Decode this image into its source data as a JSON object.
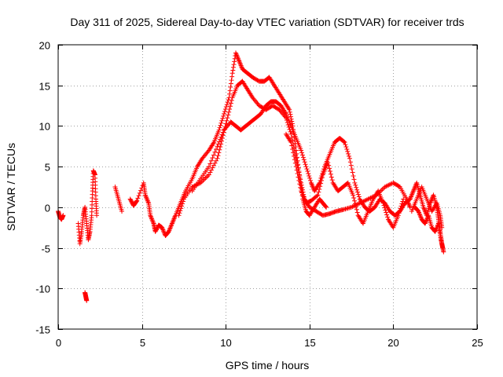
{
  "chart_data": {
    "type": "scatter",
    "title": "Day 311 of 2025, Sidereal Day-to-day VTEC variation (SDTVAR) for receiver trds",
    "xlabel": "GPS time / hours",
    "ylabel": "SDTVAR / TECUs",
    "xlim": [
      0,
      25
    ],
    "ylim": [
      -15,
      20
    ],
    "xticks": [
      0,
      5,
      10,
      15,
      20,
      25
    ],
    "yticks": [
      -15,
      -10,
      -5,
      0,
      5,
      10,
      15,
      20
    ],
    "xtick_labels": [
      "0",
      "5",
      "10",
      "15",
      "20",
      "25"
    ],
    "ytick_labels": [
      "-15",
      "-10",
      "-5",
      "0",
      "5",
      "10",
      "15",
      "20"
    ],
    "grid": true,
    "marker": "+",
    "series": [
      {
        "name": "trds",
        "color": "#ff0000",
        "tracks": [
          [
            [
              0.0,
              -0.5
            ],
            [
              0.1,
              -1.2
            ],
            [
              0.2,
              -1.5
            ],
            [
              0.3,
              -1.0
            ]
          ],
          [
            [
              1.2,
              -2.0
            ],
            [
              1.3,
              -4.5
            ],
            [
              1.4,
              -3.0
            ],
            [
              1.5,
              -1.0
            ],
            [
              1.6,
              0.0
            ],
            [
              1.7,
              -2.0
            ],
            [
              1.8,
              -4.0
            ],
            [
              1.9,
              -3.0
            ],
            [
              2.0,
              -1.0
            ],
            [
              2.05,
              2.0
            ],
            [
              2.1,
              4.5
            ],
            [
              2.2,
              4.0
            ],
            [
              2.25,
              1.0
            ],
            [
              2.3,
              -1.0
            ]
          ],
          [
            [
              1.6,
              -10.5
            ],
            [
              1.65,
              -11.0
            ],
            [
              1.7,
              -11.5
            ]
          ],
          [
            [
              3.4,
              2.5
            ],
            [
              3.6,
              1.0
            ],
            [
              3.8,
              -0.5
            ]
          ],
          [
            [
              4.3,
              1.0
            ],
            [
              4.5,
              0.2
            ],
            [
              4.7,
              0.8
            ],
            [
              5.1,
              3.0
            ],
            [
              5.2,
              1.5
            ],
            [
              5.4,
              0.5
            ],
            [
              5.5,
              -1.0
            ],
            [
              5.7,
              -2.0
            ],
            [
              5.8,
              -3.0
            ],
            [
              6.0,
              -2.2
            ],
            [
              6.2,
              -2.5
            ],
            [
              6.4,
              -3.5
            ],
            [
              6.6,
              -3.0
            ],
            [
              6.8,
              -2.0
            ],
            [
              7.0,
              -1.0
            ],
            [
              7.3,
              0.5
            ],
            [
              7.6,
              2.0
            ],
            [
              8.0,
              3.5
            ],
            [
              8.3,
              5.0
            ],
            [
              8.6,
              6.0
            ],
            [
              9.0,
              7.0
            ],
            [
              9.3,
              8.0
            ],
            [
              9.6,
              9.5
            ],
            [
              9.9,
              11.5
            ],
            [
              10.2,
              13.5
            ],
            [
              10.4,
              16.5
            ],
            [
              10.6,
              19.0
            ],
            [
              10.8,
              18.0
            ],
            [
              11.0,
              17.0
            ],
            [
              11.3,
              16.5
            ],
            [
              11.6,
              16.0
            ],
            [
              12.0,
              15.5
            ],
            [
              12.3,
              15.5
            ],
            [
              12.6,
              16.0
            ],
            [
              12.9,
              15.0
            ],
            [
              13.2,
              14.0
            ],
            [
              13.5,
              13.0
            ],
            [
              13.8,
              12.0
            ],
            [
              14.0,
              10.0
            ],
            [
              14.2,
              7.0
            ],
            [
              14.4,
              4.0
            ],
            [
              14.6,
              1.0
            ],
            [
              14.8,
              -0.5
            ],
            [
              15.0,
              -1.0
            ],
            [
              15.3,
              0.0
            ],
            [
              15.6,
              1.0
            ],
            [
              15.8,
              0.5
            ],
            [
              16.0,
              0.0
            ]
          ],
          [
            [
              7.2,
              -1.0
            ],
            [
              7.5,
              1.0
            ],
            [
              8.0,
              2.5
            ],
            [
              8.5,
              3.0
            ],
            [
              9.0,
              4.0
            ],
            [
              9.5,
              6.0
            ],
            [
              9.8,
              8.5
            ],
            [
              10.1,
              11.0
            ],
            [
              10.4,
              13.5
            ],
            [
              10.7,
              15.0
            ],
            [
              11.0,
              15.5
            ],
            [
              11.3,
              14.5
            ],
            [
              11.6,
              13.5
            ],
            [
              12.0,
              12.5
            ],
            [
              12.4,
              12.0
            ],
            [
              12.8,
              12.5
            ],
            [
              13.2,
              12.0
            ],
            [
              13.6,
              11.0
            ],
            [
              13.9,
              9.0
            ],
            [
              14.2,
              6.0
            ],
            [
              14.5,
              3.0
            ],
            [
              14.7,
              1.0
            ],
            [
              15.0,
              0.0
            ],
            [
              15.4,
              -0.5
            ],
            [
              15.8,
              -1.0
            ],
            [
              16.2,
              -0.8
            ],
            [
              16.6,
              -0.5
            ],
            [
              17.0,
              -0.3
            ],
            [
              17.5,
              0.0
            ],
            [
              18.0,
              0.5
            ],
            [
              18.5,
              1.0
            ],
            [
              19.0,
              1.5
            ],
            [
              19.5,
              2.5
            ],
            [
              20.0,
              3.0
            ],
            [
              20.4,
              2.5
            ],
            [
              20.8,
              1.0
            ],
            [
              21.0,
              0.0
            ]
          ],
          [
            [
              8.0,
              2.0
            ],
            [
              8.5,
              3.5
            ],
            [
              9.0,
              5.0
            ],
            [
              9.5,
              7.5
            ],
            [
              9.9,
              9.5
            ],
            [
              10.3,
              10.5
            ],
            [
              10.6,
              10.0
            ],
            [
              10.9,
              9.5
            ],
            [
              11.2,
              10.0
            ],
            [
              11.5,
              10.5
            ],
            [
              11.8,
              11.0
            ],
            [
              12.1,
              11.5
            ],
            [
              12.4,
              12.5
            ],
            [
              12.7,
              13.0
            ],
            [
              13.0,
              13.0
            ],
            [
              13.3,
              12.5
            ],
            [
              13.6,
              11.5
            ],
            [
              13.9,
              10.0
            ],
            [
              14.2,
              8.5
            ],
            [
              14.5,
              7.0
            ],
            [
              14.8,
              5.0
            ],
            [
              15.1,
              3.0
            ],
            [
              15.3,
              2.0
            ],
            [
              15.6,
              3.0
            ],
            [
              15.9,
              5.0
            ],
            [
              16.2,
              6.5
            ],
            [
              16.5,
              8.0
            ],
            [
              16.8,
              8.5
            ],
            [
              17.1,
              8.0
            ],
            [
              17.4,
              6.0
            ],
            [
              17.7,
              3.0
            ],
            [
              18.0,
              1.0
            ],
            [
              18.3,
              0.0
            ],
            [
              18.6,
              -0.5
            ],
            [
              18.9,
              0.0
            ],
            [
              19.2,
              1.0
            ],
            [
              19.5,
              0.5
            ],
            [
              19.8,
              -0.5
            ],
            [
              20.1,
              -1.0
            ],
            [
              20.4,
              -0.5
            ],
            [
              20.7,
              0.5
            ],
            [
              21.0,
              1.0
            ]
          ],
          [
            [
              13.6,
              9.0
            ],
            [
              13.9,
              8.0
            ],
            [
              14.2,
              5.0
            ],
            [
              14.5,
              2.0
            ],
            [
              14.8,
              0.5
            ],
            [
              15.1,
              0.8
            ],
            [
              15.5,
              1.5
            ],
            [
              15.8,
              4.0
            ],
            [
              16.1,
              5.5
            ],
            [
              16.4,
              3.0
            ],
            [
              16.7,
              2.0
            ],
            [
              17.0,
              2.5
            ],
            [
              17.3,
              3.0
            ],
            [
              17.6,
              1.5
            ],
            [
              17.9,
              -1.0
            ],
            [
              18.2,
              -2.0
            ],
            [
              18.5,
              -0.5
            ],
            [
              18.8,
              1.0
            ],
            [
              19.1,
              2.0
            ],
            [
              19.4,
              0.5
            ],
            [
              19.7,
              -1.5
            ],
            [
              20.0,
              -2.5
            ],
            [
              20.3,
              -1.0
            ],
            [
              20.6,
              1.0
            ]
          ],
          [
            [
              21.0,
              1.0
            ],
            [
              21.2,
              2.0
            ],
            [
              21.4,
              3.0
            ],
            [
              21.6,
              1.5
            ],
            [
              21.8,
              0.0
            ],
            [
              22.0,
              -1.0
            ],
            [
              22.2,
              0.5
            ],
            [
              22.4,
              1.5
            ],
            [
              22.6,
              0.0
            ],
            [
              22.7,
              -1.5
            ],
            [
              22.8,
              -3.0
            ],
            [
              22.9,
              -4.5
            ],
            [
              23.0,
              -5.5
            ]
          ],
          [
            [
              21.3,
              0.0
            ],
            [
              21.5,
              -0.5
            ],
            [
              21.7,
              -1.5
            ],
            [
              21.9,
              -2.0
            ],
            [
              22.1,
              -1.0
            ],
            [
              22.3,
              -2.5
            ],
            [
              22.5,
              -3.0
            ],
            [
              22.7,
              -2.0
            ],
            [
              22.85,
              -4.0
            ],
            [
              22.95,
              -5.0
            ]
          ],
          [
            [
              21.1,
              -0.5
            ],
            [
              21.4,
              1.0
            ],
            [
              21.7,
              2.5
            ],
            [
              22.0,
              1.0
            ],
            [
              22.3,
              -0.5
            ],
            [
              22.6,
              0.5
            ],
            [
              22.8,
              -1.0
            ],
            [
              22.9,
              -2.5
            ]
          ]
        ]
      }
    ]
  }
}
